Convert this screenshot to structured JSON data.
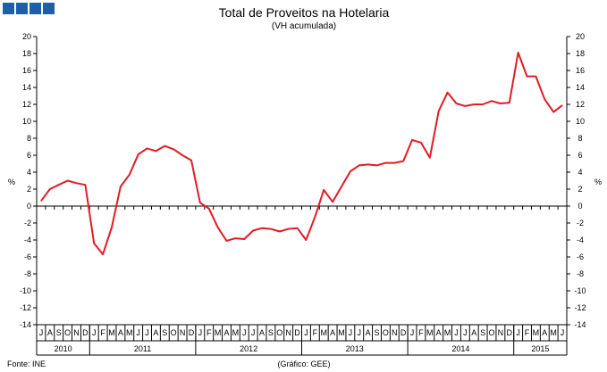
{
  "logo": {
    "color": "#1f5fa8",
    "blocks": 4
  },
  "chart_data": {
    "type": "line",
    "title": "Total de Proveitos na Hotelaria",
    "subtitle": "(VH acumulada)",
    "ylabel_left": "%",
    "ylabel_right": "%",
    "ylim": [
      -14,
      20
    ],
    "yticks": [
      20,
      18,
      16,
      14,
      12,
      10,
      8,
      6,
      4,
      2,
      0,
      -2,
      -4,
      -6,
      -8,
      -10,
      -12,
      -14
    ],
    "months": [
      "J",
      "A",
      "S",
      "O",
      "N",
      "D",
      "J",
      "F",
      "M",
      "A",
      "M",
      "J",
      "J",
      "A",
      "S",
      "O",
      "N",
      "D",
      "J",
      "F",
      "M",
      "A",
      "M",
      "J",
      "J",
      "A",
      "S",
      "O",
      "N",
      "D",
      "J",
      "F",
      "M",
      "A",
      "M",
      "J",
      "J",
      "A",
      "S",
      "O",
      "N",
      "D",
      "J",
      "F",
      "M",
      "A",
      "M",
      "J",
      "J",
      "A",
      "S",
      "O",
      "N",
      "D",
      "J",
      "F",
      "M",
      "A",
      "M",
      "J"
    ],
    "years": [
      {
        "label": "2010",
        "start": 0,
        "count": 6
      },
      {
        "label": "2011",
        "start": 6,
        "count": 12
      },
      {
        "label": "2012",
        "start": 18,
        "count": 12
      },
      {
        "label": "2013",
        "start": 30,
        "count": 12
      },
      {
        "label": "2014",
        "start": 42,
        "count": 12
      },
      {
        "label": "2015",
        "start": 54,
        "count": 6
      }
    ],
    "series": [
      {
        "color": "#e31b23",
        "values": [
          0.6,
          2.0,
          2.5,
          3.0,
          2.7,
          2.5,
          -4.4,
          -5.7,
          -2.5,
          2.3,
          3.7,
          6.1,
          6.8,
          6.5,
          7.1,
          6.7,
          6.0,
          5.4,
          0.4,
          -0.3,
          -2.5,
          -4.1,
          -3.8,
          -3.9,
          -2.9,
          -2.6,
          -2.7,
          -3.0,
          -2.7,
          -2.6,
          -4.0,
          -1.3,
          1.9,
          0.5,
          2.3,
          4.1,
          4.8,
          4.9,
          4.8,
          5.1,
          5.1,
          5.3,
          7.8,
          7.5,
          5.7,
          11.2,
          13.4,
          12.1,
          11.8,
          12.0,
          12.0,
          12.4,
          12.1,
          12.2,
          18.1,
          15.3,
          15.3,
          12.6,
          11.1,
          11.9
        ]
      }
    ]
  },
  "footer": {
    "source": "Fonte: INE",
    "credit": "(Gráfico: GEE)"
  }
}
